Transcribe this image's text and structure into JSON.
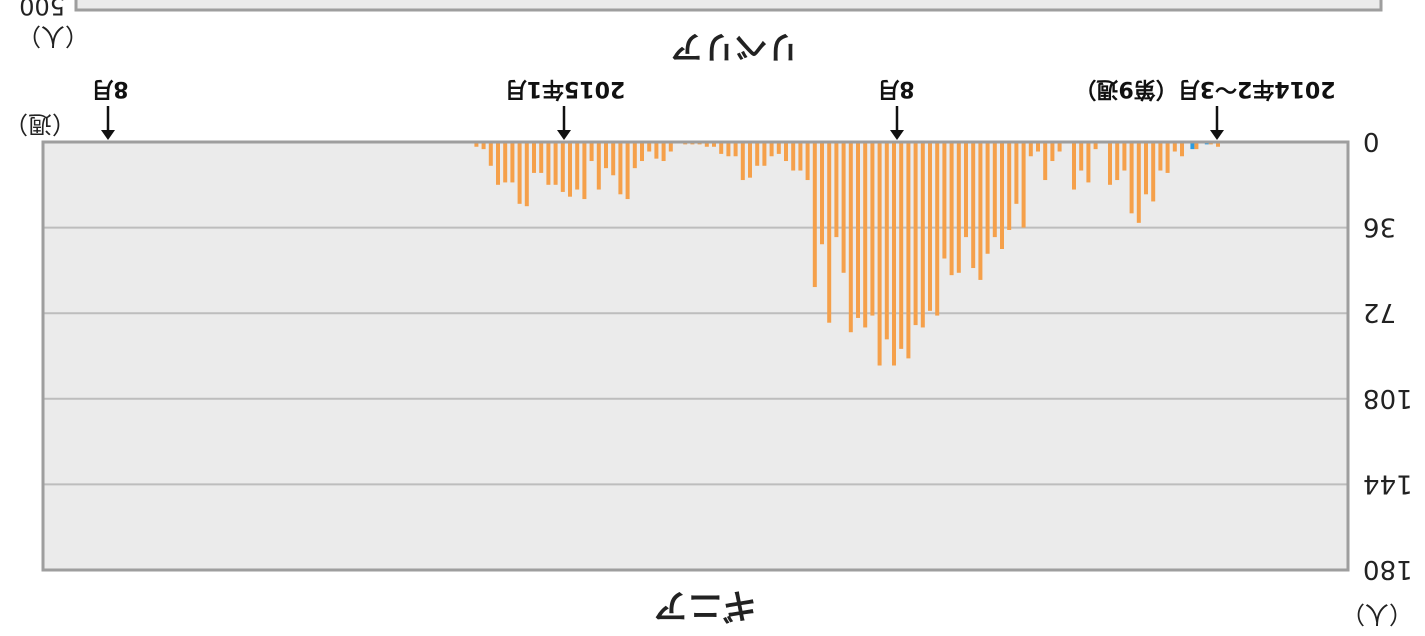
{
  "chart_data": {
    "type": "bar",
    "orientation": "rotated-180",
    "top_panel": {
      "title": "リベリア",
      "unit": "（人）",
      "ymax_label": "500"
    },
    "title": "ギニア",
    "ylabel": "（人）",
    "xlabel": "（週）",
    "yticks": [
      "0",
      "36",
      "72",
      "108",
      "144",
      "180"
    ],
    "ylim": [
      0,
      180
    ],
    "grid": true,
    "annotations": [
      "2014年2～3月（第9週）",
      "8月",
      "2015年1月",
      "8月"
    ],
    "colors": {
      "series_a": "#f5a04a",
      "series_b": "#2a9be0",
      "plot_bg": "#ebebeb",
      "grid": "#bdbdbd",
      "frame": "#9e9e9e"
    },
    "series": [
      {
        "values": [
          2,
          1,
          0,
          3,
          0,
          6,
          4,
          13,
          12,
          25,
          22,
          34,
          30,
          12,
          16,
          18,
          0,
          3,
          17,
          12,
          20,
          0,
          4,
          8,
          16,
          4,
          6,
          36,
          26,
          37,
          45,
          40,
          47,
          58,
          53,
          40,
          55,
          56,
          49,
          73,
          71,
          78,
          77,
          91,
          87,
          94,
          83,
          94,
          73,
          78,
          74,
          80,
          55,
          40,
          76,
          43,
          61,
          16,
          12,
          12,
          8,
          5,
          6,
          10,
          10,
          15,
          16,
          6,
          6,
          5,
          2,
          2,
          1,
          1,
          1,
          0,
          4,
          8,
          7,
          4,
          8,
          11,
          24,
          22,
          14,
          11,
          20,
          8,
          24,
          20,
          23,
          21,
          18,
          18,
          13,
          13,
          27,
          26,
          17,
          17,
          18,
          10,
          3,
          2
        ]
      },
      {
        "values": [
          0,
          1,
          0,
          3,
          0,
          0,
          0,
          0,
          0,
          0,
          0,
          0,
          0,
          0,
          0,
          0,
          0,
          0,
          0,
          0,
          0,
          0,
          0,
          0,
          0,
          0,
          0,
          0,
          0,
          0,
          0,
          0,
          0,
          0,
          0,
          0,
          0,
          0,
          0,
          0,
          0,
          0,
          0,
          0,
          0,
          0,
          0,
          0,
          0,
          0,
          0,
          0,
          0,
          0,
          0,
          0,
          0,
          0,
          0,
          0,
          0,
          0,
          0,
          0,
          0,
          0,
          0,
          0,
          0,
          0,
          0,
          0,
          0,
          0,
          0,
          0,
          0,
          0,
          0,
          0,
          0,
          0,
          0,
          0,
          0,
          0,
          0,
          0,
          0,
          0,
          0,
          0,
          0,
          0,
          0,
          0,
          0,
          0,
          0,
          0,
          0,
          0,
          0,
          0
        ]
      }
    ]
  }
}
